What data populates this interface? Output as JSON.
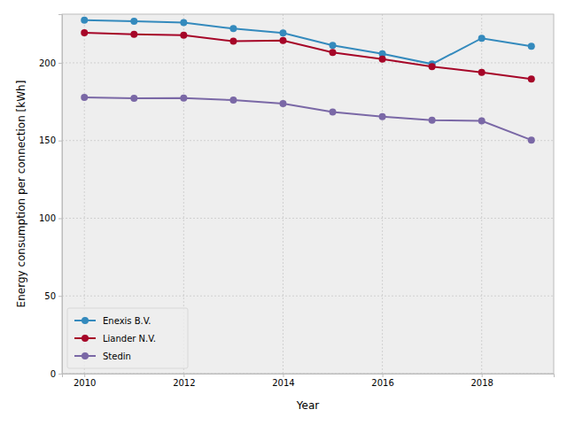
{
  "chart_data": {
    "type": "line",
    "x_label": "Year",
    "y_label": "Energy consumption per connection [kWh]",
    "x": [
      2010,
      2011,
      2012,
      2013,
      2014,
      2015,
      2016,
      2017,
      2018,
      2019
    ],
    "series": [
      {
        "name": "Enexis B.V.",
        "color": "#348ABD",
        "marker": "circle",
        "values": [
          227.5,
          226.8,
          225.9,
          222.0,
          219.2,
          211.2,
          205.8,
          199.2,
          215.8,
          210.6
        ]
      },
      {
        "name": "Liander N.V.",
        "color": "#A60628",
        "marker": "circle",
        "values": [
          219.3,
          218.3,
          217.7,
          213.9,
          214.3,
          206.7,
          202.4,
          197.6,
          193.8,
          189.6
        ]
      },
      {
        "name": "Stedin",
        "color": "#7A68A6",
        "marker": "circle",
        "values": [
          177.8,
          177.2,
          177.3,
          176.0,
          173.7,
          168.3,
          165.3,
          163.1,
          162.6,
          150.3
        ]
      }
    ],
    "xlim": [
      2009.55,
      2019.45
    ],
    "ylim": [
      0,
      231.3
    ],
    "xticks": [
      2010,
      2012,
      2014,
      2016,
      2018
    ],
    "yticks": [
      0,
      50,
      100,
      150,
      200
    ],
    "grid": true,
    "legend": "lower left"
  }
}
